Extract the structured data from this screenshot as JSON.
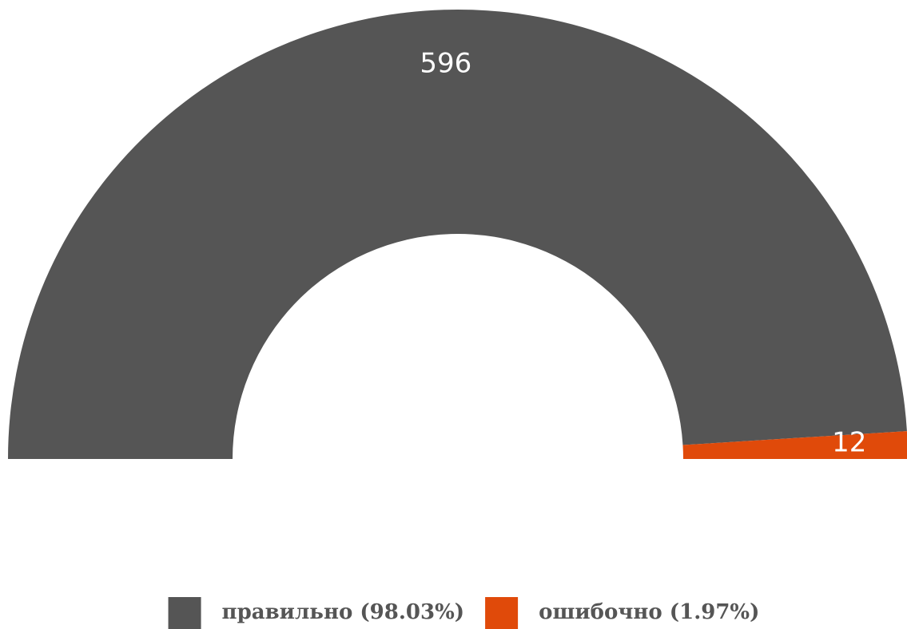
{
  "chart_data": {
    "type": "semi-donut",
    "categories": [
      "правильно (98.03%)",
      "ошибочно (1.97%)"
    ],
    "values": [
      596,
      12
    ],
    "colors": [
      "#555555",
      "#e04a0a"
    ],
    "legend": "bottom"
  }
}
